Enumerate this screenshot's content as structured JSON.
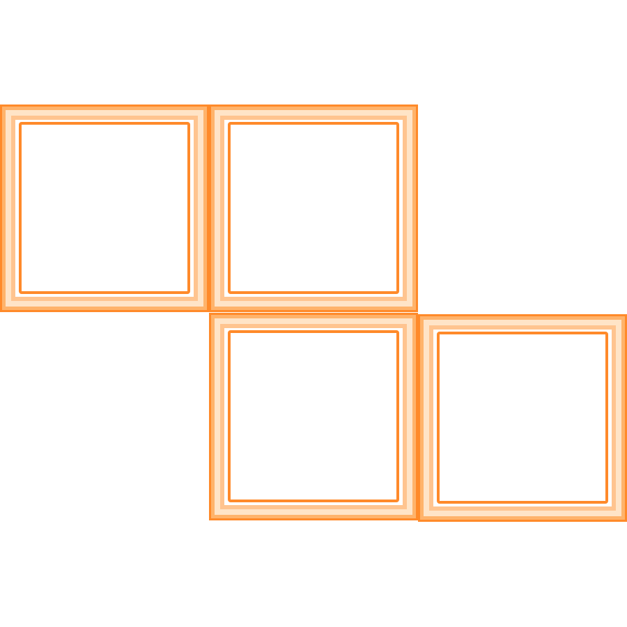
{
  "piece": {
    "shape": "Z",
    "block_count": 4,
    "rows": [
      [
        1,
        1,
        0
      ],
      [
        0,
        1,
        1
      ]
    ]
  },
  "colors": {
    "block_edge": "#ff8a2a",
    "block_glow": "#ffffff",
    "background": "#ffffff"
  }
}
